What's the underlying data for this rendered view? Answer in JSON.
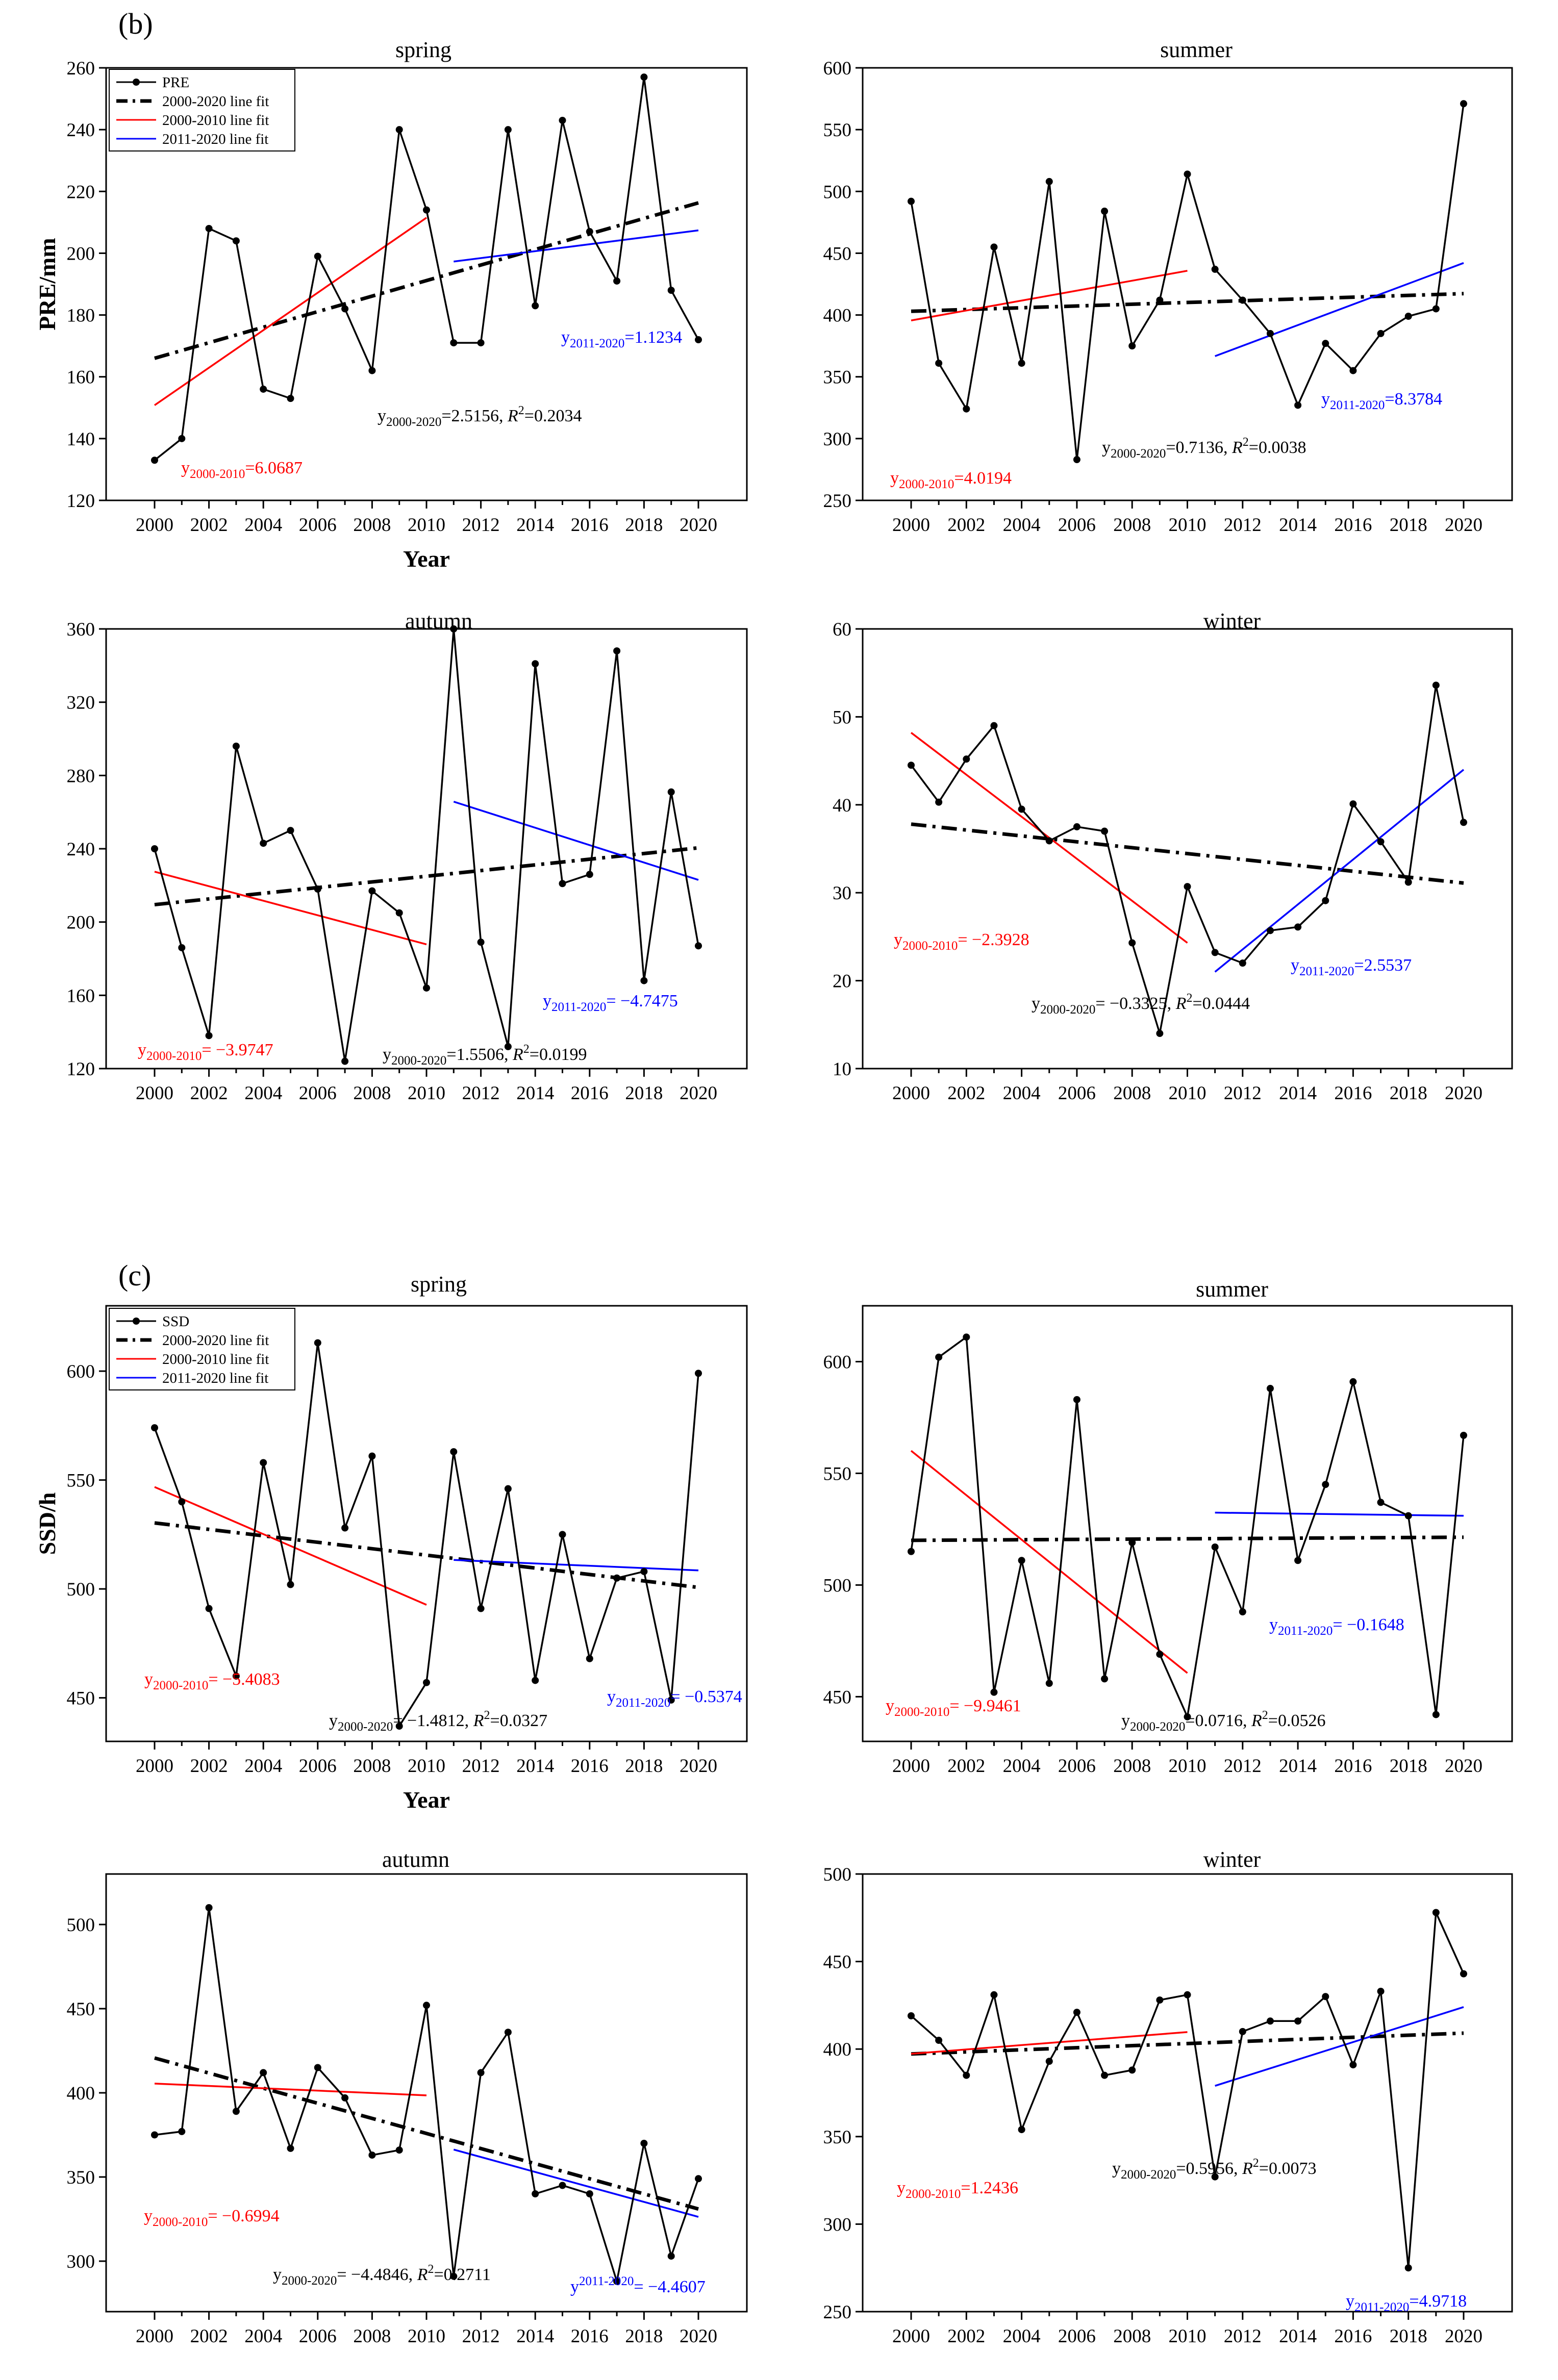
{
  "colors": {
    "data": "#000000",
    "fit_all": "#000000",
    "fit_early": "#ff0000",
    "fit_late": "#0000ff",
    "axis": "#000000"
  },
  "figure": {
    "panel_labels": [
      {
        "id": "b",
        "text": "(b)"
      },
      {
        "id": "c",
        "text": "(c)"
      }
    ],
    "ylabels": {
      "b": "PRE/mm",
      "c": "SSD/h"
    },
    "xlabel": "Year",
    "legends": {
      "b": [
        "PRE",
        "2000-2020 line fit",
        "2000-2010 line fit",
        "2011-2020 line fit"
      ],
      "c": [
        "SSD",
        "2000-2020 line fit",
        "2000-2010 line fit",
        "2011-2020 line fit"
      ]
    }
  },
  "chart_data": [
    {
      "id": "pre_spring",
      "group": "b",
      "type": "line",
      "title": "spring",
      "x": [
        2000,
        2001,
        2002,
        2003,
        2004,
        2005,
        2006,
        2007,
        2008,
        2009,
        2010,
        2011,
        2012,
        2013,
        2014,
        2015,
        2016,
        2017,
        2018,
        2019,
        2020
      ],
      "values": [
        133,
        140,
        208,
        204,
        156,
        153,
        199,
        182,
        162,
        240,
        214,
        171,
        171,
        240,
        183,
        243,
        207,
        191,
        257,
        188,
        172
      ],
      "ylim": [
        120,
        260
      ],
      "yticks": [
        120,
        140,
        160,
        180,
        200,
        220,
        240,
        260
      ],
      "xticks": [
        2000,
        2002,
        2004,
        2006,
        2008,
        2010,
        2012,
        2014,
        2016,
        2018,
        2020
      ],
      "fits": {
        "all": [
          166,
          216.3
        ],
        "early": [
          150.8,
          211.5
        ],
        "late": [
          197.3,
          207.4
        ]
      },
      "annotations": {
        "early": {
          "pre": "y",
          "sub": "2000-2010",
          "post": "=6.0687"
        },
        "late": {
          "pre": "y",
          "sub": "2011-2020",
          "post": "=1.1234"
        },
        "all": {
          "pre": "y",
          "sub": "2000-2020",
          "mid": "=2.5156, ",
          "r2": "R",
          "sup": "2",
          "post": "=0.2034"
        }
      }
    },
    {
      "id": "pre_summer",
      "group": "b",
      "type": "line",
      "title": "summer",
      "x": [
        2000,
        2001,
        2002,
        2003,
        2004,
        2005,
        2006,
        2007,
        2008,
        2009,
        2010,
        2011,
        2012,
        2013,
        2014,
        2015,
        2016,
        2017,
        2018,
        2019,
        2020
      ],
      "values": [
        492,
        361,
        324,
        455,
        361,
        508,
        283,
        484,
        375,
        412,
        514,
        437,
        412,
        385,
        327,
        377,
        355,
        385,
        399,
        405,
        571
      ],
      "ylim": [
        250,
        600
      ],
      "yticks": [
        250,
        300,
        350,
        400,
        450,
        500,
        550,
        600
      ],
      "xticks": [
        2000,
        2002,
        2004,
        2006,
        2008,
        2010,
        2012,
        2014,
        2016,
        2018,
        2020
      ],
      "fits": {
        "all": [
          403,
          417.3
        ],
        "early": [
          395.6,
          435.8
        ],
        "late": [
          366.7,
          442.1
        ]
      },
      "annotations": {
        "early": {
          "pre": "y",
          "sub": "2000-2010",
          "post": "=4.0194"
        },
        "late": {
          "pre": "y",
          "sub": "2011-2020",
          "post": "=8.3784"
        },
        "all": {
          "pre": "y",
          "sub": "2000-2020",
          "mid": "=0.7136, ",
          "r2": "R",
          "sup": "2",
          "post": "=0.0038"
        }
      }
    },
    {
      "id": "pre_autumn",
      "group": "b",
      "type": "line",
      "title": "autumn",
      "x": [
        2000,
        2001,
        2002,
        2003,
        2004,
        2005,
        2006,
        2007,
        2008,
        2009,
        2010,
        2011,
        2012,
        2013,
        2014,
        2015,
        2016,
        2017,
        2018,
        2019,
        2020
      ],
      "values": [
        240,
        186,
        138,
        296,
        243,
        250,
        218,
        124,
        217,
        205,
        164,
        360,
        189,
        132,
        341,
        221,
        226,
        348,
        168,
        271,
        187
      ],
      "ylim": [
        120,
        360
      ],
      "yticks": [
        120,
        160,
        200,
        240,
        280,
        320,
        360
      ],
      "xticks": [
        2000,
        2002,
        2004,
        2006,
        2008,
        2010,
        2012,
        2014,
        2016,
        2018,
        2020
      ],
      "fits": {
        "all": [
          209.5,
          240.5
        ],
        "early": [
          227.5,
          187.8
        ],
        "late": [
          265.7,
          223
        ]
      },
      "annotations": {
        "early": {
          "pre": "y",
          "sub": "2000-2010",
          "post": "= −3.9747"
        },
        "late": {
          "pre": "y",
          "sub": "2011-2020",
          "post": "= −4.7475"
        },
        "all": {
          "pre": "y",
          "sub": "2000-2020",
          "mid": "=1.5506, ",
          "r2": "R",
          "sup": "2",
          "post": "=0.0199"
        }
      }
    },
    {
      "id": "pre_winter",
      "group": "b",
      "type": "line",
      "title": "winter",
      "x": [
        2000,
        2001,
        2002,
        2003,
        2004,
        2005,
        2006,
        2007,
        2008,
        2009,
        2010,
        2011,
        2012,
        2013,
        2014,
        2015,
        2016,
        2017,
        2018,
        2019,
        2020
      ],
      "values": [
        44.5,
        40.3,
        45.2,
        49,
        39.5,
        35.9,
        37.5,
        37,
        24.3,
        14,
        30.7,
        23.2,
        22,
        25.7,
        26.1,
        29.1,
        40.1,
        35.8,
        31.2,
        53.6,
        38
      ],
      "ylim": [
        10,
        60
      ],
      "yticks": [
        10,
        20,
        30,
        40,
        50,
        60
      ],
      "xticks": [
        2000,
        2002,
        2004,
        2006,
        2008,
        2010,
        2012,
        2014,
        2016,
        2018,
        2020
      ],
      "fits": {
        "all": [
          37.8,
          31.1
        ],
        "early": [
          48.2,
          24.3
        ],
        "late": [
          21,
          44
        ]
      },
      "annotations": {
        "early": {
          "pre": "y",
          "sub": "2000-2010",
          "post": "= −2.3928"
        },
        "late": {
          "pre": "y",
          "sub": "2011-2020",
          "post": "=2.5537"
        },
        "all": {
          "pre": "y",
          "sub": "2000-2020",
          "mid": "= −0.3325, ",
          "r2": "R",
          "sup": "2",
          "post": "=0.0444"
        }
      }
    },
    {
      "id": "ssd_spring",
      "group": "c",
      "type": "line",
      "title": "spring",
      "x": [
        2000,
        2001,
        2002,
        2003,
        2004,
        2005,
        2006,
        2007,
        2008,
        2009,
        2010,
        2011,
        2012,
        2013,
        2014,
        2015,
        2016,
        2017,
        2018,
        2019,
        2020
      ],
      "values": [
        574,
        540,
        491,
        460,
        558,
        502,
        613,
        528,
        561,
        437,
        457,
        563,
        491,
        546,
        458,
        525,
        468,
        505,
        508,
        449,
        599
      ],
      "ylim": [
        430,
        630
      ],
      "yticks": [
        450,
        500,
        550,
        600
      ],
      "xticks": [
        2000,
        2002,
        2004,
        2006,
        2008,
        2010,
        2012,
        2014,
        2016,
        2018,
        2020
      ],
      "fits": {
        "all": [
          530.3,
          500.7
        ],
        "early": [
          546.8,
          492.7
        ],
        "late": [
          513.3,
          508.5
        ]
      },
      "annotations": {
        "early": {
          "pre": "y",
          "sub": "2000-2010",
          "post": "= −5.4083"
        },
        "late": {
          "pre": "y",
          "sub": "2011-2020",
          "post": "= −0.5374"
        },
        "all": {
          "pre": "y",
          "sub": "2000-2020",
          "mid": "= −1.4812, ",
          "r2": "R",
          "sup": "2",
          "post": "=0.0327"
        }
      }
    },
    {
      "id": "ssd_summer",
      "group": "c",
      "type": "line",
      "title": "summer",
      "x": [
        2000,
        2001,
        2002,
        2003,
        2004,
        2005,
        2006,
        2007,
        2008,
        2009,
        2010,
        2011,
        2012,
        2013,
        2014,
        2015,
        2016,
        2017,
        2018,
        2019,
        2020
      ],
      "values": [
        515,
        602,
        611,
        452,
        511,
        456,
        583,
        458,
        519,
        469,
        441,
        517,
        488,
        588,
        511,
        545,
        591,
        537,
        531,
        442,
        567
      ],
      "ylim": [
        430,
        625
      ],
      "yticks": [
        450,
        500,
        550,
        600
      ],
      "xticks": [
        2000,
        2002,
        2004,
        2006,
        2008,
        2010,
        2012,
        2014,
        2016,
        2018,
        2020
      ],
      "fits": {
        "all": [
          520,
          521.4
        ],
        "early": [
          560.1,
          460.6
        ],
        "late": [
          532.4,
          531
        ]
      },
      "annotations": {
        "early": {
          "pre": "y",
          "sub": "2000-2010",
          "post": "= −9.9461"
        },
        "late": {
          "pre": "y",
          "sub": "2011-2020",
          "post": "= −0.1648"
        },
        "all": {
          "pre": "y",
          "sub": "2000-2020",
          "mid": "=0.0716, ",
          "r2": "R",
          "sup": "2",
          "post": "=0.0526"
        }
      }
    },
    {
      "id": "ssd_autumn",
      "group": "c",
      "type": "line",
      "title": "autumn",
      "x": [
        2000,
        2001,
        2002,
        2003,
        2004,
        2005,
        2006,
        2007,
        2008,
        2009,
        2010,
        2011,
        2012,
        2013,
        2014,
        2015,
        2016,
        2017,
        2018,
        2019,
        2020
      ],
      "values": [
        375,
        377,
        510,
        389,
        412,
        367,
        415,
        397,
        363,
        366,
        452,
        291,
        412,
        436,
        340,
        345,
        340,
        288,
        370,
        303,
        349
      ],
      "ylim": [
        270,
        530
      ],
      "yticks": [
        300,
        350,
        400,
        450,
        500
      ],
      "xticks": [
        2000,
        2002,
        2004,
        2006,
        2008,
        2010,
        2012,
        2014,
        2016,
        2018,
        2020
      ],
      "fits": {
        "all": [
          420.7,
          331
        ],
        "early": [
          405.5,
          398.5
        ],
        "late": [
          366.3,
          326.3
        ]
      },
      "annotations": {
        "early": {
          "pre": "y",
          "sub": "2000-2010",
          "post": "= −0.6994"
        },
        "late": {
          "pre": "y",
          "sub": "2011-2020",
          "post": "= −4.4607",
          "superscript": true
        },
        "all": {
          "pre": "y",
          "sub": "2000-2020",
          "mid": "= −4.4846, ",
          "r2": "R",
          "sup": "2",
          "post": "=0.2711"
        }
      }
    },
    {
      "id": "ssd_winter",
      "group": "c",
      "type": "line",
      "title": "winter",
      "x": [
        2000,
        2001,
        2002,
        2003,
        2004,
        2005,
        2006,
        2007,
        2008,
        2009,
        2010,
        2011,
        2012,
        2013,
        2014,
        2015,
        2016,
        2017,
        2018,
        2019,
        2020
      ],
      "values": [
        419,
        405,
        385,
        431,
        354,
        393,
        421,
        385,
        388,
        428,
        431,
        327,
        410,
        416,
        416,
        430,
        391,
        433,
        275,
        478,
        443
      ],
      "ylim": [
        250,
        500
      ],
      "yticks": [
        250,
        300,
        350,
        400,
        450,
        500
      ],
      "xticks": [
        2000,
        2002,
        2004,
        2006,
        2008,
        2010,
        2012,
        2014,
        2016,
        2018,
        2020
      ],
      "fits": {
        "all": [
          397.2,
          409.1
        ],
        "early": [
          397.3,
          409.7
        ],
        "late": [
          379,
          424
        ]
      },
      "annotations": {
        "early": {
          "pre": "y",
          "sub": "2000-2010",
          "post": "=1.2436"
        },
        "late": {
          "pre": "y",
          "sub": "2011-2020",
          "post": "=4.9718"
        },
        "all": {
          "pre": "y",
          "sub": "2000-2020",
          "mid": "=0.5956, ",
          "r2": "R",
          "sup": "2",
          "post": "=0.0073"
        }
      }
    }
  ]
}
